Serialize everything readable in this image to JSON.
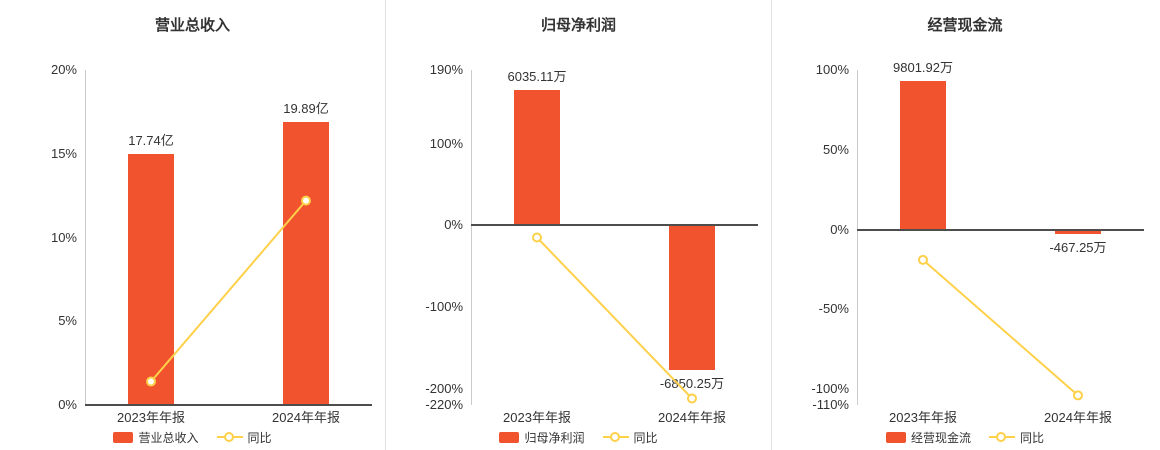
{
  "colors": {
    "bar": "#f0532d",
    "line": "#ffd04a",
    "zero_axis": "#4d4d4d",
    "y_axis": "#cccccc",
    "text": "#333333",
    "divider": "#e0e0e0"
  },
  "chart_data": [
    {
      "type": "bar",
      "title": "营业总收入",
      "categories": [
        "2023年年报",
        "2024年年报"
      ],
      "ylim": [
        0,
        20
      ],
      "yticks": [
        {
          "value": 20,
          "label": "20%"
        },
        {
          "value": 15,
          "label": "15%"
        },
        {
          "value": 10,
          "label": "10%"
        },
        {
          "value": 5,
          "label": "5%"
        },
        {
          "value": 0,
          "label": "0%"
        }
      ],
      "bar_series": {
        "name": "营业总收入",
        "value_labels": [
          "17.74亿",
          "19.89亿"
        ],
        "plot_values": [
          15.0,
          16.9
        ]
      },
      "line_series": {
        "name": "同比",
        "unit": "%",
        "values": [
          1.4,
          12.2
        ]
      },
      "legend": [
        "营业总收入",
        "同比"
      ]
    },
    {
      "type": "bar",
      "title": "归母净利润",
      "categories": [
        "2023年年报",
        "2024年年报"
      ],
      "ylim": [
        -220,
        190
      ],
      "yticks": [
        {
          "value": 190,
          "label": "190%"
        },
        {
          "value": 100,
          "label": "100%"
        },
        {
          "value": 0,
          "label": "0%"
        },
        {
          "value": -100,
          "label": "-100%"
        },
        {
          "value": -200,
          "label": "-200%"
        },
        {
          "value": -220,
          "label": "-220%"
        }
      ],
      "bar_series": {
        "name": "归母净利润",
        "value_labels": [
          "6035.11万",
          "-6850.25万"
        ],
        "plot_values": [
          165,
          -177
        ]
      },
      "line_series": {
        "name": "同比",
        "unit": "%",
        "values": [
          -15,
          -212
        ]
      },
      "legend": [
        "归母净利润",
        "同比"
      ]
    },
    {
      "type": "bar",
      "title": "经营现金流",
      "categories": [
        "2023年年报",
        "2024年年报"
      ],
      "ylim": [
        -110,
        100
      ],
      "yticks": [
        {
          "value": 100,
          "label": "100%"
        },
        {
          "value": 50,
          "label": "50%"
        },
        {
          "value": 0,
          "label": "0%"
        },
        {
          "value": -50,
          "label": "-50%"
        },
        {
          "value": -100,
          "label": "-100%"
        },
        {
          "value": -110,
          "label": "-110%"
        }
      ],
      "bar_series": {
        "name": "经营现金流",
        "value_labels": [
          "9801.92万",
          "-467.25万"
        ],
        "plot_values": [
          93,
          -3
        ]
      },
      "line_series": {
        "name": "同比",
        "unit": "%",
        "values": [
          -19,
          -104
        ]
      },
      "legend": [
        "经营现金流",
        "同比"
      ]
    }
  ]
}
